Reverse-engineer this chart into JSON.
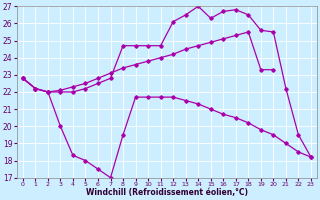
{
  "xlabel": "Windchill (Refroidissement éolien,°C)",
  "background_color": "#cceeff",
  "line_color": "#aa00aa",
  "grid_color": "#ffffff",
  "xlim": [
    -0.5,
    23.5
  ],
  "ylim": [
    17,
    27
  ],
  "yticks": [
    17,
    18,
    19,
    20,
    21,
    22,
    23,
    24,
    25,
    26,
    27
  ],
  "xticks": [
    0,
    1,
    2,
    3,
    4,
    5,
    6,
    7,
    8,
    9,
    10,
    11,
    12,
    13,
    14,
    15,
    16,
    17,
    18,
    19,
    20,
    21,
    22,
    23
  ],
  "series": [
    {
      "x": [
        0,
        1,
        2,
        3,
        4,
        5,
        6,
        7,
        8,
        9,
        10,
        11,
        12,
        13,
        14,
        15,
        16,
        17,
        18,
        19,
        20,
        21,
        22,
        23
      ],
      "y": [
        22.8,
        22.2,
        22.0,
        22.0,
        22.0,
        22.2,
        22.5,
        22.8,
        24.7,
        24.7,
        24.7,
        24.7,
        26.1,
        26.5,
        27.0,
        26.3,
        26.7,
        26.8,
        26.5,
        25.6,
        25.5,
        22.2,
        19.5,
        18.2
      ]
    },
    {
      "x": [
        0,
        1,
        2,
        3,
        4,
        5,
        6,
        7,
        8,
        9,
        10,
        11,
        12,
        13,
        14,
        15,
        16,
        17,
        18,
        19,
        20,
        21,
        22,
        23
      ],
      "y": [
        22.8,
        22.2,
        22.0,
        22.1,
        22.3,
        22.5,
        22.8,
        23.1,
        23.4,
        23.6,
        23.8,
        24.0,
        24.2,
        24.5,
        24.7,
        24.9,
        25.1,
        25.3,
        25.5,
        23.3,
        23.3,
        null,
        null,
        null
      ]
    },
    {
      "x": [
        0,
        1,
        2,
        3,
        4,
        5,
        6,
        7,
        8,
        9,
        10,
        11,
        12,
        13,
        14,
        15,
        16,
        17,
        18,
        19,
        20,
        21,
        22,
        23
      ],
      "y": [
        22.8,
        22.2,
        22.0,
        20.0,
        18.3,
        18.0,
        17.5,
        17.0,
        19.5,
        21.7,
        21.7,
        21.7,
        21.7,
        21.5,
        21.3,
        21.0,
        20.7,
        20.5,
        20.2,
        19.8,
        19.5,
        19.0,
        18.5,
        18.2
      ]
    }
  ]
}
